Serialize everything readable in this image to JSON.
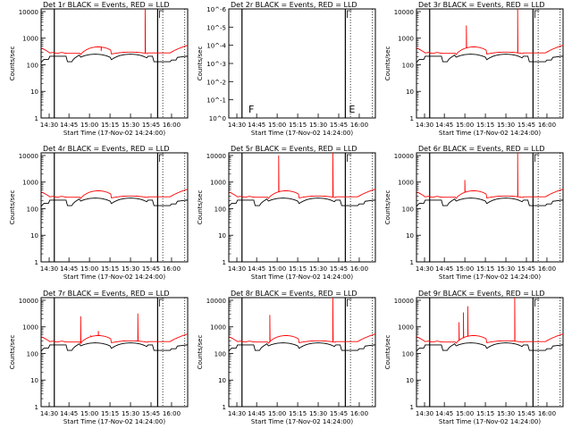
{
  "chart_data": [
    {
      "type": "line",
      "title": "Det 1r BLACK = Events, RED = LLD",
      "ylabel": "Counts/sec",
      "xlabel": "Start Time (17-Nov-02 14:24:00)",
      "xticks": [
        "14:30",
        "14:45",
        "15:00",
        "15:15",
        "15:30",
        "15:45",
        "16:00"
      ],
      "yticks": [
        "1",
        "10",
        "100",
        "1000",
        "10000"
      ],
      "ylim_log10": [
        0,
        4.1
      ],
      "markers": [],
      "series": [
        {
          "name": "Events",
          "color": "#000000",
          "shape": "events",
          "values": []
        },
        {
          "name": "LLD",
          "color": "#ff0000",
          "shape": "lld",
          "spikes": [
            {
              "x": 41,
              "v": 330
            },
            {
              "x": 71,
              "v": 15000
            }
          ]
        }
      ]
    },
    {
      "type": "line",
      "title": "Det 2r BLACK = Events, RED = LLD",
      "ylabel": "Counts/sec",
      "xlabel": "Start Time (17-Nov-02 14:24:00)",
      "xticks": [
        "14:30",
        "14:45",
        "15:00",
        "15:15",
        "15:30",
        "15:45",
        "16:00"
      ],
      "yticks": [
        "10^0",
        "10^-1",
        "10^-2",
        "10^-3",
        "10^-4",
        "10^-5",
        "10^-6"
      ],
      "ylim_log10": [
        0,
        6
      ],
      "markers": [
        "F",
        "E"
      ],
      "empty": true,
      "series": []
    },
    {
      "type": "line",
      "title": "Det 3r BLACK = Events, RED = LLD",
      "ylabel": "Counts/sec",
      "xlabel": "Start Time (17-Nov-02 14:24:00)",
      "xticks": [
        "14:30",
        "14:45",
        "15:00",
        "15:15",
        "15:30",
        "15:45",
        "16:00"
      ],
      "yticks": [
        "1",
        "10",
        "100",
        "1000",
        "10000"
      ],
      "ylim_log10": [
        0,
        4.1
      ],
      "markers": [],
      "series": [
        {
          "name": "Events",
          "color": "#000000",
          "shape": "events"
        },
        {
          "name": "LLD",
          "color": "#ff0000",
          "shape": "lld",
          "spikes": [
            {
              "x": 34,
              "v": 3000
            },
            {
              "x": 69,
              "v": 15000
            }
          ]
        }
      ]
    },
    {
      "type": "line",
      "title": "Det 4r BLACK = Events, RED = LLD",
      "ylabel": "Counts/sec",
      "xlabel": "Start Time (17-Nov-02 14:24:00)",
      "xticks": [
        "14:30",
        "14:45",
        "15:00",
        "15:15",
        "15:30",
        "15:45",
        "16:00"
      ],
      "yticks": [
        "1",
        "10",
        "100",
        "1000",
        "10000"
      ],
      "ylim_log10": [
        0,
        4.1
      ],
      "markers": [],
      "series": [
        {
          "name": "Events",
          "color": "#000000",
          "shape": "events"
        },
        {
          "name": "LLD",
          "color": "#ff0000",
          "shape": "lld",
          "spikes": []
        }
      ]
    },
    {
      "type": "line",
      "title": "Det 5r BLACK = Events, RED = LLD",
      "ylabel": "Counts/sec",
      "xlabel": "Start Time (17-Nov-02 14:24:00)",
      "xticks": [
        "14:30",
        "14:45",
        "15:00",
        "15:15",
        "15:30",
        "15:45",
        "16:00"
      ],
      "yticks": [
        "1",
        "10",
        "100",
        "1000",
        "10000"
      ],
      "ylim_log10": [
        0,
        4.1
      ],
      "markers": [],
      "series": [
        {
          "name": "Events",
          "color": "#000000",
          "shape": "events"
        },
        {
          "name": "LLD",
          "color": "#ff0000",
          "shape": "lld",
          "spikes": [
            {
              "x": 34,
              "v": 10000
            },
            {
              "x": 71,
              "v": 15000
            }
          ]
        }
      ]
    },
    {
      "type": "line",
      "title": "Det 6r BLACK = Events, RED = LLD",
      "ylabel": "Counts/sec",
      "xlabel": "Start Time (17-Nov-02 14:24:00)",
      "xticks": [
        "14:30",
        "14:45",
        "15:00",
        "15:15",
        "15:30",
        "15:45",
        "16:00"
      ],
      "yticks": [
        "1",
        "10",
        "100",
        "1000",
        "10000"
      ],
      "ylim_log10": [
        0,
        4.1
      ],
      "markers": [],
      "series": [
        {
          "name": "Events",
          "color": "#000000",
          "shape": "events"
        },
        {
          "name": "LLD",
          "color": "#ff0000",
          "shape": "lld",
          "spikes": [
            {
              "x": 33,
              "v": 1200
            },
            {
              "x": 69,
              "v": 15000
            }
          ]
        }
      ]
    },
    {
      "type": "line",
      "title": "Det 7r BLACK = Events, RED = LLD",
      "ylabel": "Counts/sec",
      "xlabel": "Start Time (17-Nov-02 14:24:00)",
      "xticks": [
        "14:30",
        "14:45",
        "15:00",
        "15:15",
        "15:30",
        "15:45",
        "16:00"
      ],
      "yticks": [
        "1",
        "10",
        "100",
        "1000",
        "10000"
      ],
      "ylim_log10": [
        0,
        4.1
      ],
      "markers": [],
      "series": [
        {
          "name": "Events",
          "color": "#000000",
          "shape": "events"
        },
        {
          "name": "LLD",
          "color": "#ff0000",
          "shape": "lld",
          "spikes": [
            {
              "x": 27,
              "v": 2500
            },
            {
              "x": 34,
              "v": 450
            },
            {
              "x": 39,
              "v": 700
            },
            {
              "x": 66,
              "v": 3200
            }
          ]
        }
      ]
    },
    {
      "type": "line",
      "title": "Det 8r BLACK = Events, RED = LLD",
      "ylabel": "Counts/sec",
      "xlabel": "Start Time (17-Nov-02 14:24:00)",
      "xticks": [
        "14:30",
        "14:45",
        "15:00",
        "15:15",
        "15:30",
        "15:45",
        "16:00"
      ],
      "yticks": [
        "1",
        "10",
        "100",
        "1000",
        "10000"
      ],
      "ylim_log10": [
        0,
        4.1
      ],
      "markers": [],
      "series": [
        {
          "name": "Events",
          "color": "#000000",
          "shape": "events"
        },
        {
          "name": "LLD",
          "color": "#ff0000",
          "shape": "lld",
          "spikes": [
            {
              "x": 28,
              "v": 2800
            },
            {
              "x": 71,
              "v": 15000
            }
          ]
        }
      ]
    },
    {
      "type": "line",
      "title": "Det 9r BLACK = Events, RED = LLD",
      "ylabel": "Counts/sec",
      "xlabel": "Start Time (17-Nov-02 14:24:00)",
      "xticks": [
        "14:30",
        "14:45",
        "15:00",
        "15:15",
        "15:30",
        "15:45",
        "16:00"
      ],
      "yticks": [
        "1",
        "10",
        "100",
        "1000",
        "10000"
      ],
      "ylim_log10": [
        0,
        4.1
      ],
      "markers": [],
      "series": [
        {
          "name": "Events",
          "color": "#000000",
          "shape": "events"
        },
        {
          "name": "LLD",
          "color": "#ff0000",
          "shape": "lld",
          "spikes": [
            {
              "x": 29,
              "v": 1500
            },
            {
              "x": 32,
              "v": 3500
            },
            {
              "x": 35,
              "v": 6000
            },
            {
              "x": 67,
              "v": 15000
            }
          ]
        }
      ]
    }
  ]
}
